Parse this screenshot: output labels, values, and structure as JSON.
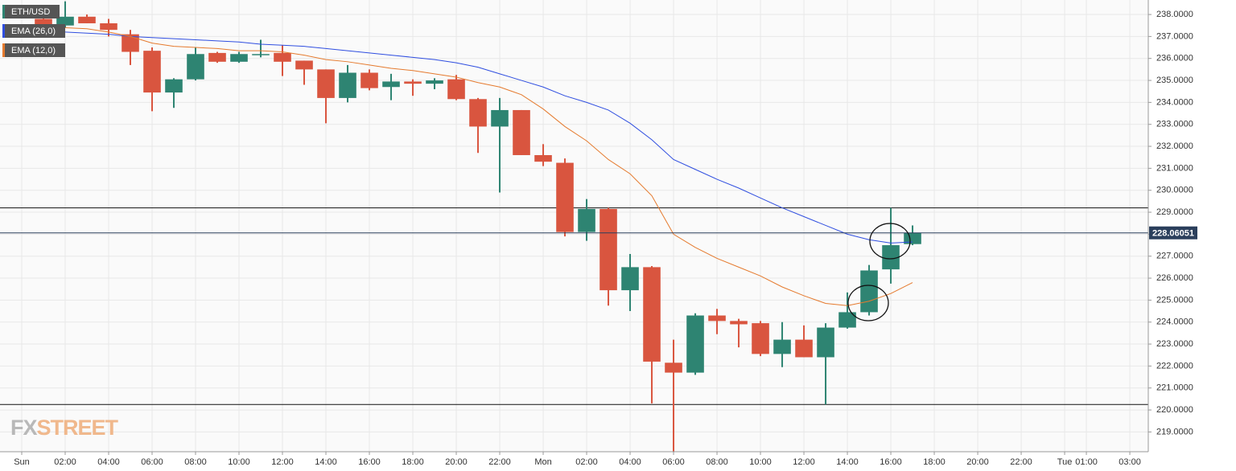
{
  "chart_data": {
    "type": "candlestick",
    "symbol": "ETH/USD",
    "watermark": [
      "FX",
      "STREET"
    ],
    "up_color": "#2e8472",
    "down_color": "#d9553f",
    "x": [
      1,
      2,
      3,
      4,
      5,
      6,
      7,
      8,
      9,
      10,
      11,
      12,
      13,
      14,
      15,
      16,
      17,
      18,
      19,
      20,
      21,
      22,
      23,
      24,
      25,
      26,
      27,
      28,
      29,
      30,
      31,
      32,
      33,
      34,
      35,
      36,
      37,
      38,
      39,
      40,
      41
    ],
    "open": [
      237.8,
      237.5,
      237.9,
      237.6,
      237.1,
      236.35,
      234.45,
      235.05,
      236.25,
      235.85,
      236.15,
      236.25,
      235.9,
      235.5,
      234.2,
      235.35,
      234.7,
      234.95,
      234.85,
      235.05,
      234.15,
      232.9,
      233.65,
      231.6,
      231.25,
      228.1,
      229.15,
      225.45,
      226.5,
      222.15,
      221.7,
      224.3,
      224.05,
      223.95,
      222.55,
      223.2,
      222.4,
      223.75,
      224.45,
      226.4,
      227.55
    ],
    "high": [
      237.9,
      238.6,
      238.0,
      237.8,
      237.3,
      236.5,
      235.1,
      236.5,
      236.3,
      236.3,
      236.85,
      236.6,
      235.9,
      235.5,
      235.7,
      235.5,
      235.3,
      235.05,
      235.1,
      235.25,
      234.2,
      234.2,
      233.65,
      232.1,
      231.45,
      229.6,
      229.2,
      227.1,
      226.55,
      223.2,
      224.4,
      224.6,
      224.15,
      224.05,
      224.0,
      223.85,
      223.95,
      225.35,
      226.6,
      229.2,
      228.4
    ],
    "low": [
      237.4,
      237.4,
      237.6,
      237.0,
      235.7,
      233.6,
      233.75,
      235.0,
      235.8,
      235.8,
      236.05,
      235.2,
      234.8,
      233.05,
      234.0,
      234.55,
      234.1,
      234.3,
      234.6,
      234.1,
      231.7,
      229.9,
      231.6,
      231.1,
      227.9,
      227.7,
      224.75,
      224.5,
      220.3,
      218.1,
      221.6,
      223.45,
      222.85,
      222.45,
      221.95,
      222.4,
      220.25,
      223.7,
      224.3,
      225.75,
      227.5
    ],
    "close": [
      237.5,
      237.9,
      237.6,
      237.3,
      236.3,
      234.45,
      235.05,
      236.2,
      235.85,
      236.2,
      236.2,
      235.85,
      235.5,
      234.2,
      235.35,
      234.65,
      234.95,
      234.85,
      235.0,
      234.15,
      232.9,
      233.65,
      231.6,
      231.3,
      228.1,
      229.15,
      225.45,
      226.5,
      222.2,
      221.7,
      224.3,
      224.05,
      223.9,
      222.55,
      223.2,
      222.4,
      223.75,
      224.45,
      226.35,
      227.5,
      228.06
    ],
    "series": [
      {
        "name": "EMA (26,0)",
        "color": "#2f4ee0",
        "values": [
          237.25,
          237.2,
          237.15,
          237.1,
          237.0,
          236.95,
          236.9,
          236.85,
          236.8,
          236.75,
          236.65,
          236.6,
          236.55,
          236.45,
          236.35,
          236.25,
          236.15,
          236.05,
          235.95,
          235.8,
          235.6,
          235.3,
          235.0,
          234.7,
          234.3,
          234.0,
          233.65,
          233.05,
          232.3,
          231.4,
          230.95,
          230.5,
          230.1,
          229.65,
          229.2,
          228.8,
          228.4,
          228.0,
          227.75,
          227.6,
          227.65
        ]
      },
      {
        "name": "EMA (12,0)",
        "color": "#e57a2e",
        "values": [
          237.4,
          237.4,
          237.35,
          237.2,
          237.0,
          236.7,
          236.55,
          236.5,
          236.45,
          236.35,
          236.35,
          236.3,
          236.15,
          235.95,
          235.85,
          235.7,
          235.55,
          235.45,
          235.3,
          235.15,
          234.9,
          234.7,
          234.35,
          233.7,
          232.9,
          232.25,
          231.4,
          230.75,
          229.75,
          228.0,
          227.4,
          226.9,
          226.5,
          226.1,
          225.6,
          225.2,
          224.85,
          224.75,
          224.95,
          225.3,
          225.8
        ]
      }
    ],
    "hlines": [
      229.2,
      220.25
    ],
    "last_price": 228.06051,
    "xlim": [
      -1,
      51.85
    ],
    "xticks": [
      {
        "value": 0,
        "label": "Sun"
      },
      {
        "value": 2,
        "label": "02:00"
      },
      {
        "value": 4,
        "label": "04:00"
      },
      {
        "value": 6,
        "label": "06:00"
      },
      {
        "value": 8,
        "label": "08:00"
      },
      {
        "value": 10,
        "label": "10:00"
      },
      {
        "value": 12,
        "label": "12:00"
      },
      {
        "value": 14,
        "label": "14:00"
      },
      {
        "value": 16,
        "label": "16:00"
      },
      {
        "value": 18,
        "label": "18:00"
      },
      {
        "value": 20,
        "label": "20:00"
      },
      {
        "value": 22,
        "label": "22:00"
      },
      {
        "value": 24,
        "label": "Mon"
      },
      {
        "value": 26,
        "label": "02:00"
      },
      {
        "value": 28,
        "label": "04:00"
      },
      {
        "value": 30,
        "label": "06:00"
      },
      {
        "value": 32,
        "label": "08:00"
      },
      {
        "value": 34,
        "label": "10:00"
      },
      {
        "value": 36,
        "label": "12:00"
      },
      {
        "value": 38,
        "label": "14:00"
      },
      {
        "value": 40,
        "label": "16:00"
      },
      {
        "value": 42,
        "label": "18:00"
      },
      {
        "value": 44,
        "label": "20:00"
      },
      {
        "value": 46,
        "label": "22:00"
      },
      {
        "value": 48,
        "label": "Tue"
      },
      {
        "value": 49,
        "label": "01:00"
      },
      {
        "value": 51,
        "label": "03:00"
      }
    ],
    "ylim": [
      218.1,
      238.66
    ],
    "yticks": [
      {
        "value": 219,
        "label": "219.0000"
      },
      {
        "value": 220,
        "label": "220.0000"
      },
      {
        "value": 221,
        "label": "221.0000"
      },
      {
        "value": 222,
        "label": "222.0000"
      },
      {
        "value": 223,
        "label": "223.0000"
      },
      {
        "value": 224,
        "label": "224.0000"
      },
      {
        "value": 225,
        "label": "225.0000"
      },
      {
        "value": 226,
        "label": "226.0000"
      },
      {
        "value": 227,
        "label": "227.0000"
      },
      {
        "value": 228,
        "label": "228.0000"
      },
      {
        "value": 229,
        "label": "229.0000"
      },
      {
        "value": 230,
        "label": "230.0000"
      },
      {
        "value": 231,
        "label": "231.0000"
      },
      {
        "value": 232,
        "label": "232.0000"
      },
      {
        "value": 233,
        "label": "233.0000"
      },
      {
        "value": 234,
        "label": "234.0000"
      },
      {
        "value": 235,
        "label": "235.0000"
      },
      {
        "value": 236,
        "label": "236.0000"
      },
      {
        "value": 237,
        "label": "237.0000"
      },
      {
        "value": 238,
        "label": "238.0000"
      }
    ],
    "grid": true
  }
}
